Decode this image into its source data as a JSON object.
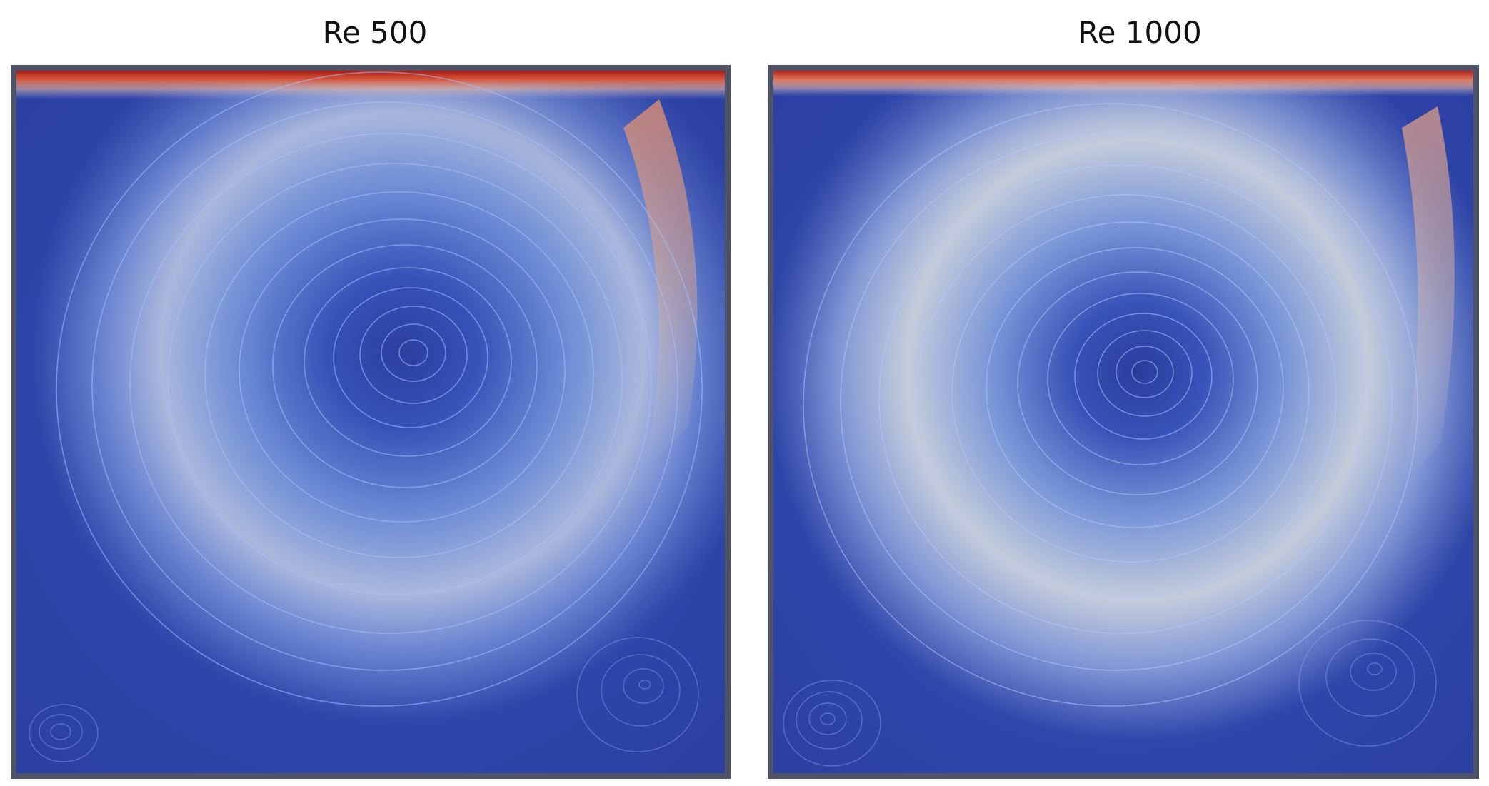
{
  "panels": [
    {
      "title": "Re 500"
    },
    {
      "title": "Re 1000"
    }
  ],
  "colors": {
    "frame": "#4e5368",
    "low_velocity": "#2d43a8",
    "mid_velocity": "#c9cfda",
    "high_velocity": "#b22418",
    "streamline": "#a8c0ff"
  }
}
